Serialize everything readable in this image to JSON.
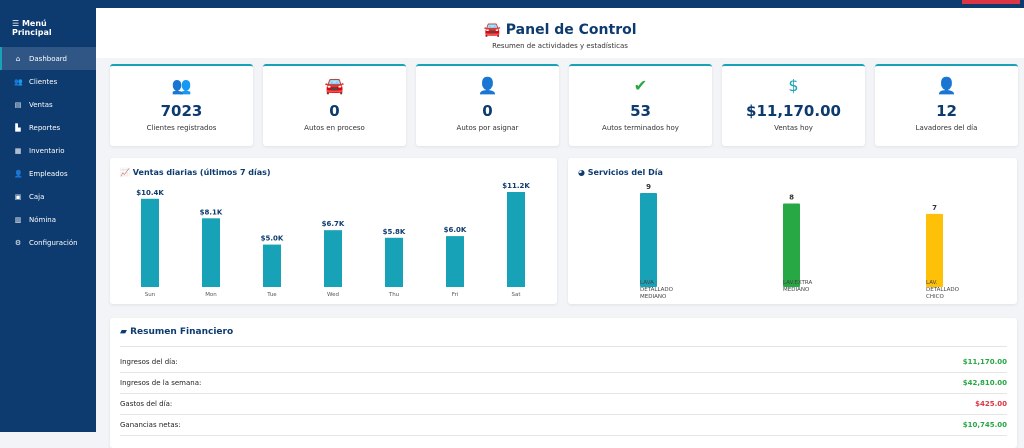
{
  "sidebar": {
    "title": "Menú Principal",
    "items": [
      {
        "label": "Dashboard",
        "icon": "home-icon",
        "active": true
      },
      {
        "label": "Clientes",
        "icon": "users-icon"
      },
      {
        "label": "Ventas",
        "icon": "cash-register-icon"
      },
      {
        "label": "Reportes",
        "icon": "chart-icon"
      },
      {
        "label": "Inventario",
        "icon": "boxes-icon"
      },
      {
        "label": "Empleados",
        "icon": "user-tie-icon"
      },
      {
        "label": "Caja",
        "icon": "cash-box-icon"
      },
      {
        "label": "Nómina",
        "icon": "payroll-icon"
      },
      {
        "label": "Configuración",
        "icon": "cogs-icon"
      }
    ]
  },
  "header": {
    "title": "Panel de Control",
    "subtitle": "Resumen de actividades y estadísticas"
  },
  "cards": [
    {
      "value": "7023",
      "label": "Clientes registrados",
      "icon": "users-icon"
    },
    {
      "value": "0",
      "label": "Autos en proceso",
      "icon": "car-icon"
    },
    {
      "value": "0",
      "label": "Autos por asignar",
      "icon": "user-clock-icon"
    },
    {
      "value": "53",
      "label": "Autos terminados hoy",
      "icon": "check-circle-icon"
    },
    {
      "value": "$11,170.00",
      "label": "Ventas hoy",
      "icon": "dollar-icon"
    },
    {
      "value": "12",
      "label": "Lavadores del día",
      "icon": "user-check-icon"
    }
  ],
  "colors": {
    "navy": "#0d3b6f",
    "teal": "#17a2b8",
    "green": "#28a745",
    "yellow": "#ffc107",
    "red": "#dc3545"
  },
  "chart_data": [
    {
      "type": "bar",
      "title": "Ventas diarias (últimos 7 días)",
      "categories": [
        "Sun",
        "Mon",
        "Tue",
        "Wed",
        "Thu",
        "Fri",
        "Sat"
      ],
      "values": [
        10400,
        8100,
        5000,
        6700,
        5800,
        6000,
        11200
      ],
      "labels": [
        "$10.4K",
        "$8.1K",
        "$5.0K",
        "$6.7K",
        "$5.8K",
        "$6.0K",
        "$11.2K"
      ],
      "grid": false
    },
    {
      "type": "bar",
      "title": "Servicios del Día",
      "categories": [
        [
          "LAVA",
          "DETALLADO",
          "MEDIANO"
        ],
        [
          "LAV.EXTRA",
          "MEDIANO"
        ],
        [
          "LAV.",
          "DETALLADO",
          "CHICO"
        ]
      ],
      "values": [
        9,
        8,
        7
      ],
      "colors": [
        "#17a2b8",
        "#28a745",
        "#ffc107"
      ],
      "grid": false
    }
  ],
  "finance": {
    "title": "Resumen Financiero",
    "rows": [
      {
        "label": "Ingresos del día:",
        "value": "$11,170.00",
        "color": "#28a745"
      },
      {
        "label": "Ingresos de la semana:",
        "value": "$42,810.00",
        "color": "#28a745"
      },
      {
        "label": "Gastos del día:",
        "value": "$425.00",
        "color": "#dc3545"
      },
      {
        "label": "Ganancias netas:",
        "value": "$10,745.00",
        "color": "#28a745"
      }
    ]
  }
}
